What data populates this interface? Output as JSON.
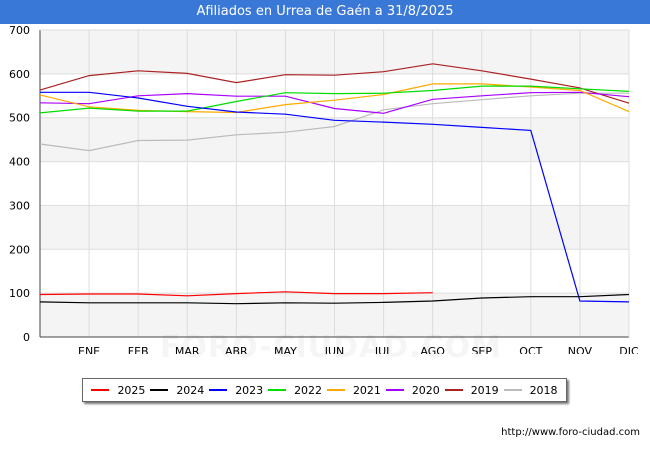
{
  "title": "Afiliados en Urrea de Gaén a 31/8/2025",
  "source": "http://www.foro-ciudad.com",
  "watermark": "FORO-CIUDAD.COM",
  "chart_data": {
    "type": "line",
    "title": "Afiliados en Urrea de Gaén a 31/8/2025",
    "categories": [
      "",
      "ENE",
      "FEB",
      "MAR",
      "ABR",
      "MAY",
      "JUN",
      "JUL",
      "AGO",
      "SEP",
      "OCT",
      "NOV",
      "DIC"
    ],
    "ylim": [
      0,
      700
    ],
    "yticks": [
      0,
      100,
      200,
      300,
      400,
      500,
      600,
      700
    ],
    "grid": true,
    "legend_position": "bottom",
    "series": [
      {
        "name": "2025",
        "color": "#ff0000",
        "values": [
          97,
          98,
          98,
          94,
          99,
          103,
          99,
          99,
          101,
          null,
          null,
          null,
          null
        ]
      },
      {
        "name": "2024",
        "color": "#000000",
        "values": [
          80,
          78,
          78,
          78,
          76,
          78,
          77,
          79,
          82,
          89,
          92,
          92,
          97
        ]
      },
      {
        "name": "2023",
        "color": "#0000ff",
        "values": [
          558,
          558,
          545,
          526,
          513,
          508,
          494,
          490,
          485,
          478,
          471,
          82,
          80
        ]
      },
      {
        "name": "2022",
        "color": "#00dd00",
        "values": [
          511,
          522,
          515,
          515,
          537,
          557,
          555,
          556,
          562,
          572,
          572,
          566,
          560
        ]
      },
      {
        "name": "2021",
        "color": "#ffaa00",
        "values": [
          552,
          525,
          517,
          514,
          512,
          530,
          540,
          553,
          577,
          577,
          570,
          562,
          514
        ]
      },
      {
        "name": "2020",
        "color": "#aa00ff",
        "values": [
          534,
          532,
          550,
          555,
          549,
          549,
          521,
          510,
          542,
          550,
          557,
          558,
          548
        ]
      },
      {
        "name": "2019",
        "color": "#aa2222",
        "values": [
          563,
          596,
          607,
          601,
          580,
          598,
          597,
          605,
          623,
          607,
          588,
          568,
          533
        ]
      },
      {
        "name": "2018",
        "color": "#bbbbbb",
        "values": [
          440,
          425,
          448,
          449,
          461,
          467,
          480,
          518,
          532,
          541,
          550,
          556,
          556
        ]
      }
    ]
  }
}
